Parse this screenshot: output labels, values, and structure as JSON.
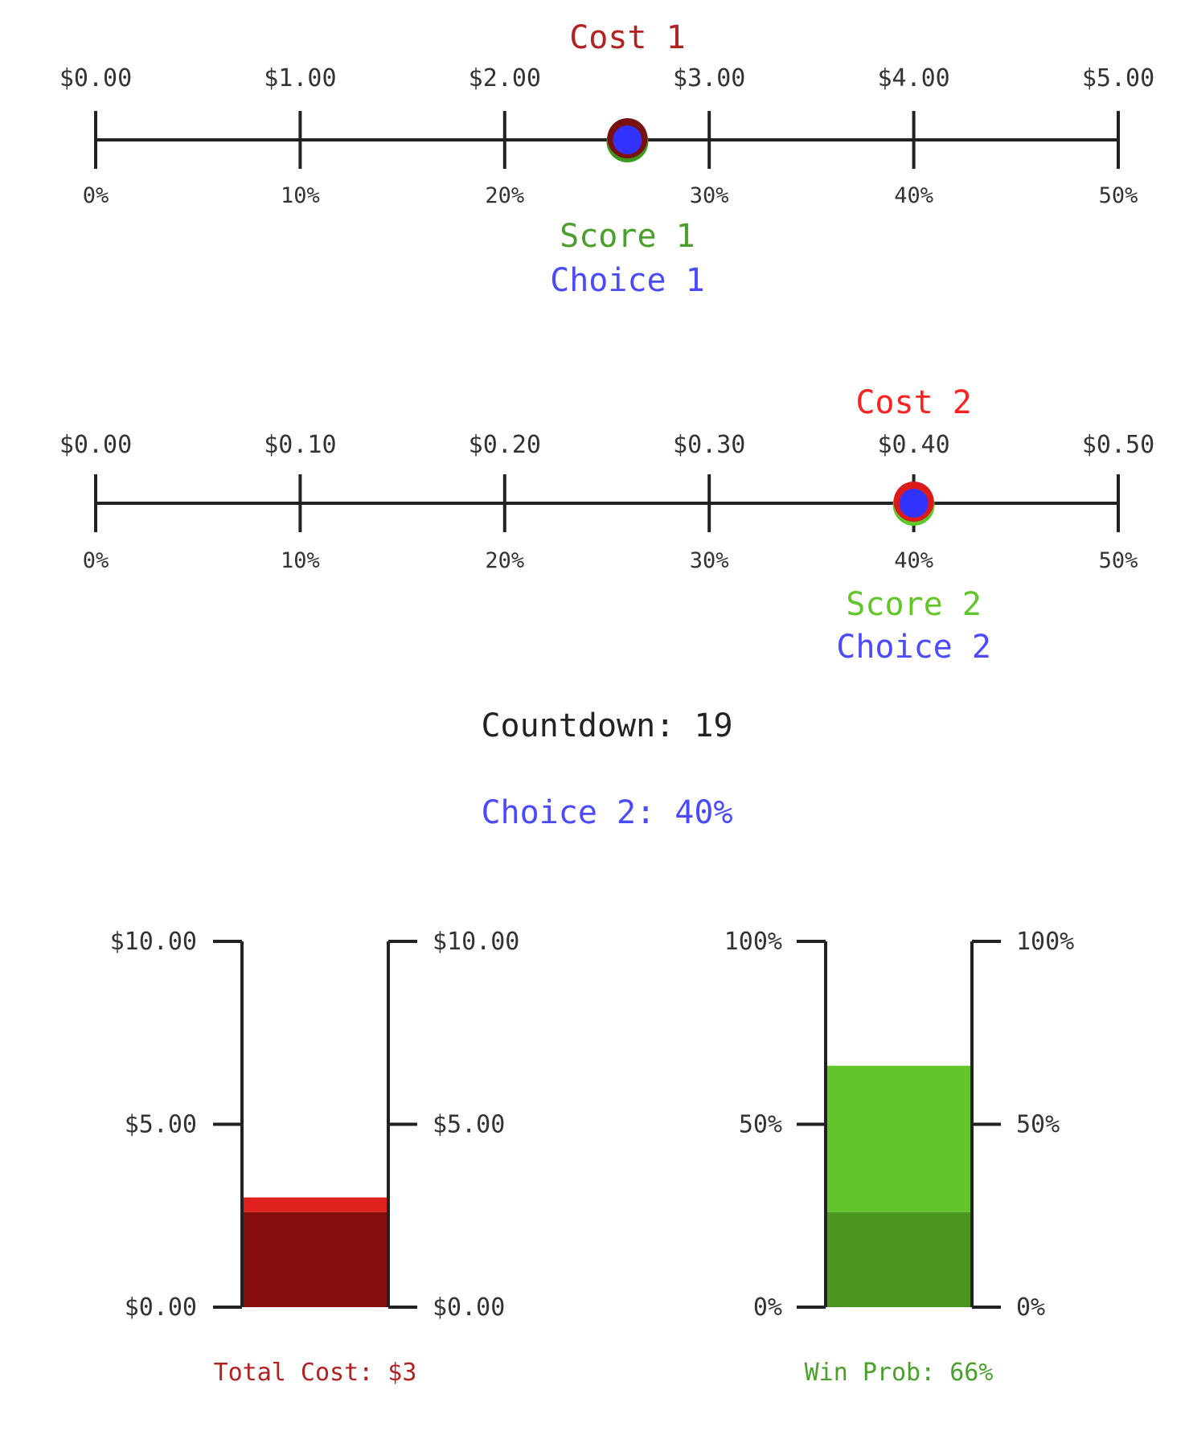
{
  "sliders": [
    {
      "id": "slider-1",
      "cost_label": "Cost 1",
      "score_label": "Score 1",
      "choice_label": "Choice 1",
      "cost_color": "#b22222",
      "score_color": "#4aa02a",
      "choice_color": "#4a4aff",
      "marker_outer_color": "#7a1010",
      "marker_ring_color": "#3a9a1a",
      "marker_inner_color": "#3333ff",
      "top_ticks": [
        "$0.00",
        "$1.00",
        "$2.00",
        "$3.00",
        "$4.00",
        "$5.00"
      ],
      "bottom_ticks": [
        "0%",
        "10%",
        "20%",
        "30%",
        "40%",
        "50%"
      ],
      "selected_percent": 26
    },
    {
      "id": "slider-2",
      "cost_label": "Cost 2",
      "score_label": "Score 2",
      "choice_label": "Choice 2",
      "cost_color": "#ff2020",
      "score_color": "#62c62a",
      "choice_color": "#4a4aff",
      "marker_outer_color": "#dd1a1a",
      "marker_ring_color": "#5cc82a",
      "marker_inner_color": "#3333ff",
      "top_ticks": [
        "$0.00",
        "$0.10",
        "$0.20",
        "$0.30",
        "$0.40",
        "$0.50"
      ],
      "bottom_ticks": [
        "0%",
        "10%",
        "20%",
        "30%",
        "40%",
        "50%"
      ],
      "selected_percent": 40
    }
  ],
  "countdown": {
    "text": "Countdown: 19",
    "value": 19
  },
  "choice_status": {
    "text": "Choice 2: 40%",
    "color": "#4a4aff"
  },
  "gauges": [
    {
      "id": "cost-gauge",
      "left_ticks": [
        "$10.00",
        "$5.00",
        "$0.00"
      ],
      "right_ticks": [
        "$10.00",
        "$5.00",
        "$0.00"
      ],
      "caption": "Total Cost: $3",
      "caption_color": "#b22222",
      "max_value": 10,
      "segments": [
        {
          "value": 2.6,
          "color": "#850d0b"
        },
        {
          "value": 0.4,
          "color": "#e0201c"
        }
      ]
    },
    {
      "id": "win-gauge",
      "left_ticks": [
        "100%",
        "50%",
        "0%"
      ],
      "right_ticks": [
        "100%",
        "50%",
        "0%"
      ],
      "caption": "Win Prob: 66%",
      "caption_color": "#4aa02a",
      "max_value": 100,
      "segments": [
        {
          "value": 26,
          "color": "#4a961e"
        },
        {
          "value": 40,
          "color": "#62c62a"
        }
      ]
    }
  ]
}
